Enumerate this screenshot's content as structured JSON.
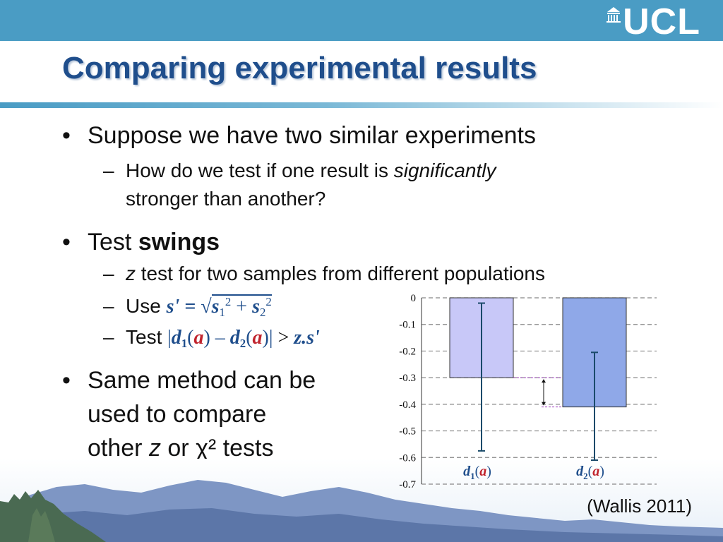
{
  "header": {
    "logo_text": "UCL",
    "title": "Comparing experimental results"
  },
  "bullets": {
    "b1": {
      "marker": "•",
      "text": "Suppose we have two similar experiments"
    },
    "b1_sub1": {
      "marker": "–",
      "pre": "How do we test if one result is ",
      "em": "significantly",
      "line2": "stronger than another?"
    },
    "b2": {
      "marker": "•",
      "pre": "Test ",
      "strong": "swings"
    },
    "b2_sub1": {
      "marker": "–",
      "em": "z",
      "rest": " test for two samples from different populations"
    },
    "b2_sub2": {
      "marker": "–",
      "pre": "Use ",
      "s_prime": "s' =",
      "root": "√",
      "s": "s",
      "one": "1",
      "two": "2",
      "plus": "+",
      "sq": "2"
    },
    "b2_sub3": {
      "marker": "–",
      "pre": "Test ",
      "bar": "|",
      "d": "d",
      "one": "1",
      "two": "2",
      "a": "a",
      "lp": "(",
      "rp": ")",
      "minus": "–",
      "gt": ">",
      "z": "z",
      "dot": ".",
      "s_prime": "s'"
    },
    "b3": {
      "marker": "•",
      "line1": "Same method can be",
      "line2": "used to compare",
      "line3_pre": "other ",
      "line3_em": "z",
      "line3_post": " or χ² tests"
    }
  },
  "citation": "(Wallis 2011)",
  "colors": {
    "topbar": "#4a9cc4",
    "title": "#1f4e8c",
    "bar1": "#c8c8f8",
    "bar2": "#8fa8e8",
    "errorbar": "#1a4a6a",
    "math_red": "#c0242e",
    "marker_dashed": "#a040c0"
  },
  "chart_data": {
    "type": "bar",
    "ylim": [
      -0.7,
      0
    ],
    "yticks": [
      "0",
      "-0.1",
      "-0.2",
      "-0.3",
      "-0.4",
      "-0.5",
      "-0.6",
      "-0.7"
    ],
    "grid": true,
    "categories": [
      "d1(a)",
      "d2(a)"
    ],
    "category_labels": [
      {
        "d": "d",
        "sub": "1",
        "a": "a"
      },
      {
        "d": "d",
        "sub": "2",
        "a": "a"
      }
    ],
    "values": [
      -0.3,
      -0.41
    ],
    "error_low": [
      -0.575,
      -0.61
    ],
    "error_high": [
      -0.02,
      -0.205
    ]
  }
}
